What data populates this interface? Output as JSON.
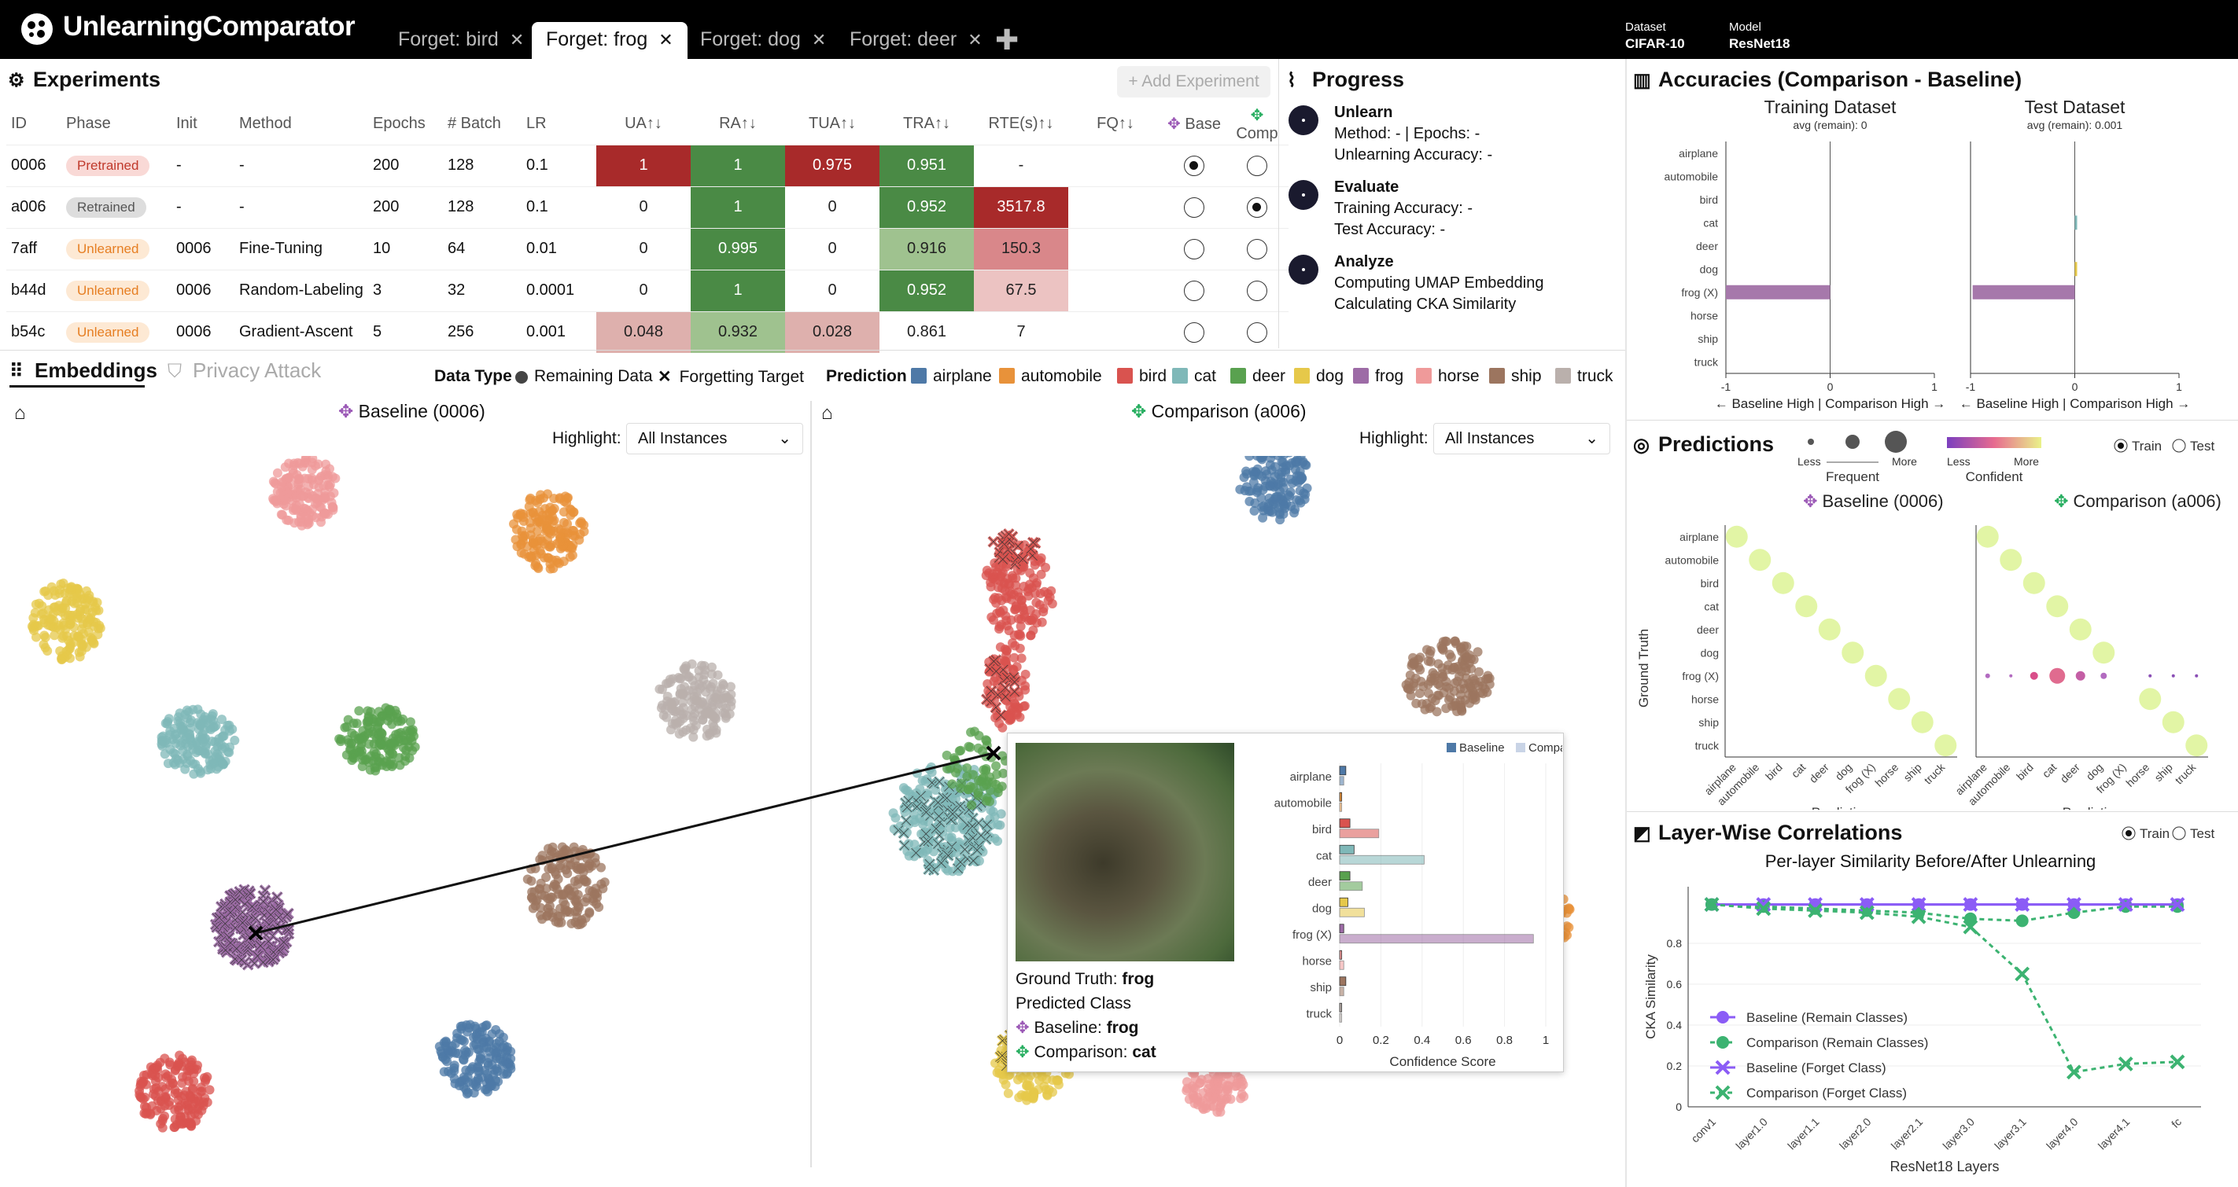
{
  "app": {
    "title": "UnlearningComparator"
  },
  "tabs": [
    {
      "label": "Forget: bird",
      "active": false
    },
    {
      "label": "Forget: frog",
      "active": true
    },
    {
      "label": "Forget: dog",
      "active": false
    },
    {
      "label": "Forget: deer",
      "active": false
    }
  ],
  "dataset": {
    "label": "Dataset",
    "value": "CIFAR-10"
  },
  "model": {
    "label": "Model",
    "value": "ResNet18"
  },
  "experiments": {
    "title": "Experiments",
    "add_button": "+ Add Experiment",
    "columns": [
      "ID",
      "Phase",
      "Init",
      "Method",
      "Epochs",
      "# Batch",
      "LR",
      "UA↑↓",
      "RA↑↓",
      "TUA↑↓",
      "TRA↑↓",
      "RTE(s)↑↓",
      "FQ↑↓",
      "Base",
      "Comp"
    ],
    "rows": [
      {
        "id": "0006",
        "phase": "Pretrained",
        "init": "-",
        "method": "-",
        "epochs": "200",
        "batch": "128",
        "lr": "0.1",
        "ua": "1",
        "ra": "1",
        "tua": "0.975",
        "tra": "0.951",
        "rte": "-",
        "fq": "",
        "base": true,
        "comp": false
      },
      {
        "id": "a006",
        "phase": "Retrained",
        "init": "-",
        "method": "-",
        "epochs": "200",
        "batch": "128",
        "lr": "0.1",
        "ua": "0",
        "ra": "1",
        "tua": "0",
        "tra": "0.952",
        "rte": "3517.8",
        "fq": "",
        "base": false,
        "comp": true
      },
      {
        "id": "7aff",
        "phase": "Unlearned",
        "init": "0006",
        "method": "Fine-Tuning",
        "epochs": "10",
        "batch": "64",
        "lr": "0.01",
        "ua": "0",
        "ra": "0.995",
        "tua": "0",
        "tra": "0.916",
        "rte": "150.3",
        "fq": "",
        "base": false,
        "comp": false
      },
      {
        "id": "b44d",
        "phase": "Unlearned",
        "init": "0006",
        "method": "Random-Labeling",
        "epochs": "3",
        "batch": "32",
        "lr": "0.0001",
        "ua": "0",
        "ra": "1",
        "tua": "0",
        "tra": "0.952",
        "rte": "67.5",
        "fq": "",
        "base": false,
        "comp": false
      },
      {
        "id": "b54c",
        "phase": "Unlearned",
        "init": "0006",
        "method": "Gradient-Ascent",
        "epochs": "5",
        "batch": "256",
        "lr": "0.001",
        "ua": "0.048",
        "ra": "0.932",
        "tua": "0.028",
        "tra": "0.861",
        "rte": "7",
        "fq": "",
        "base": false,
        "comp": false
      }
    ]
  },
  "progress": {
    "title": "Progress",
    "steps": [
      {
        "name": "Unlearn",
        "lines": [
          "Method: - | Epochs: -",
          "Unlearning Accuracy: -"
        ]
      },
      {
        "name": "Evaluate",
        "lines": [
          "Training Accuracy: -",
          "Test Accuracy: -"
        ]
      },
      {
        "name": "Analyze",
        "lines": [
          "Computing UMAP Embedding",
          "Calculating CKA Similarity"
        ]
      }
    ]
  },
  "accuracies": {
    "title": "Accuracies (Comparison - Baseline)",
    "train": {
      "title": "Training Dataset",
      "avg": "avg (remain): 0"
    },
    "test": {
      "title": "Test Dataset",
      "avg": "avg (remain): 0.001"
    },
    "classes": [
      "airplane",
      "automobile",
      "bird",
      "cat",
      "deer",
      "dog",
      "frog (X)",
      "horse",
      "ship",
      "truck"
    ],
    "axis_ticks": [
      "-1",
      "0",
      "1"
    ],
    "axis_label": "← Baseline High | Comparison High →"
  },
  "embeddings": {
    "tab1": "Embeddings",
    "tab2": "Privacy Attack",
    "data_type_label": "Data Type",
    "remaining": "Remaining Data",
    "forgetting": "Forgetting Target",
    "prediction_label": "Prediction",
    "baseline_title": "Baseline (0006)",
    "comparison_title": "Comparison (a006)",
    "highlight_label": "Highlight:",
    "highlight_value": "All Instances"
  },
  "class_colors": {
    "airplane": "#4e79a7",
    "automobile": "#e8923a",
    "bird": "#d9534f",
    "cat": "#7fb8b8",
    "deer": "#59a14f",
    "dog": "#e6c84a",
    "frog": "#9d6ba6",
    "horse": "#ef9a9a",
    "ship": "#9c755f",
    "truck": "#bab0ac"
  },
  "tooltip": {
    "gt_label": "Ground Truth:",
    "gt": "frog",
    "pred_label": "Predicted Class",
    "base_label": "Baseline:",
    "base_pred": "frog",
    "comp_label": "Comparison:",
    "comp_pred": "cat",
    "legend_base": "Baseline",
    "legend_comp": "Comparison",
    "xlabel": "Confidence Score",
    "xticks": [
      "0",
      "0.2",
      "0.4",
      "0.6",
      "0.8",
      "1"
    ]
  },
  "predictions": {
    "title": "Predictions",
    "less": "Less",
    "more": "More",
    "frequent": "Frequent",
    "confident": "Confident",
    "train": "Train",
    "test": "Test",
    "baseline": "Baseline (0006)",
    "comparison": "Comparison (a006)",
    "ylabel": "Ground Truth",
    "xlabel": "Prediction"
  },
  "layerwise": {
    "title": "Layer-Wise Correlations",
    "train": "Train",
    "test": "Test",
    "subtitle": "Per-layer Similarity Before/After Unlearning",
    "ylabel": "CKA Similarity",
    "xlabel": "ResNet18 Layers",
    "legend": [
      "Baseline (Remain Classes)",
      "Comparison (Remain Classes)",
      "Baseline (Forget Class)",
      "Comparison (Forget Class)"
    ]
  },
  "chart_data": [
    {
      "type": "bar",
      "title": "Training Dataset",
      "categories": [
        "airplane",
        "automobile",
        "bird",
        "cat",
        "deer",
        "dog",
        "frog (X)",
        "horse",
        "ship",
        "truck"
      ],
      "values": [
        0,
        0,
        0,
        0,
        0,
        0,
        -1,
        0,
        0,
        0
      ],
      "xlim": [
        -1,
        1
      ]
    },
    {
      "type": "bar",
      "title": "Test Dataset",
      "categories": [
        "airplane",
        "automobile",
        "bird",
        "cat",
        "deer",
        "dog",
        "frog (X)",
        "horse",
        "ship",
        "truck"
      ],
      "values": [
        0,
        0,
        0,
        0.005,
        0,
        0.01,
        -0.98,
        0,
        0,
        0
      ],
      "xlim": [
        -1,
        1
      ]
    },
    {
      "type": "bar",
      "title": "Confidence Score",
      "categories": [
        "airplane",
        "automobile",
        "bird",
        "cat",
        "deer",
        "dog",
        "frog (X)",
        "horse",
        "ship",
        "truck"
      ],
      "series": [
        {
          "name": "Baseline",
          "values": [
            0.03,
            0.01,
            0.05,
            0.07,
            0.05,
            0.04,
            0.02,
            0.01,
            0.03,
            0.01
          ]
        },
        {
          "name": "Comparison",
          "values": [
            0.02,
            0.01,
            0.19,
            0.41,
            0.11,
            0.12,
            0.94,
            0.02,
            0.02,
            0.01
          ]
        }
      ],
      "xlim": [
        0,
        1
      ]
    },
    {
      "type": "line",
      "title": "Per-layer Similarity Before/After Unlearning",
      "xlabel": "ResNet18 Layers",
      "ylabel": "CKA Similarity",
      "categories": [
        "conv1",
        "layer1.0",
        "layer1.1",
        "layer2.0",
        "layer2.1",
        "layer3.0",
        "layer3.1",
        "layer4.0",
        "layer4.1",
        "fc"
      ],
      "ylim": [
        0,
        1
      ],
      "series": [
        {
          "name": "Baseline (Remain Classes)",
          "values": [
            0.99,
            0.99,
            0.99,
            0.99,
            0.99,
            0.99,
            0.99,
            0.99,
            0.99,
            0.99
          ]
        },
        {
          "name": "Comparison (Remain Classes)",
          "values": [
            0.99,
            0.98,
            0.97,
            0.96,
            0.95,
            0.92,
            0.91,
            0.95,
            0.98,
            0.98
          ]
        },
        {
          "name": "Baseline (Forget Class)",
          "values": [
            0.99,
            0.99,
            0.99,
            0.99,
            0.99,
            0.99,
            0.99,
            0.99,
            0.99,
            0.99
          ]
        },
        {
          "name": "Comparison (Forget Class)",
          "values": [
            0.99,
            0.97,
            0.96,
            0.95,
            0.93,
            0.88,
            0.65,
            0.17,
            0.21,
            0.22
          ]
        }
      ]
    }
  ]
}
